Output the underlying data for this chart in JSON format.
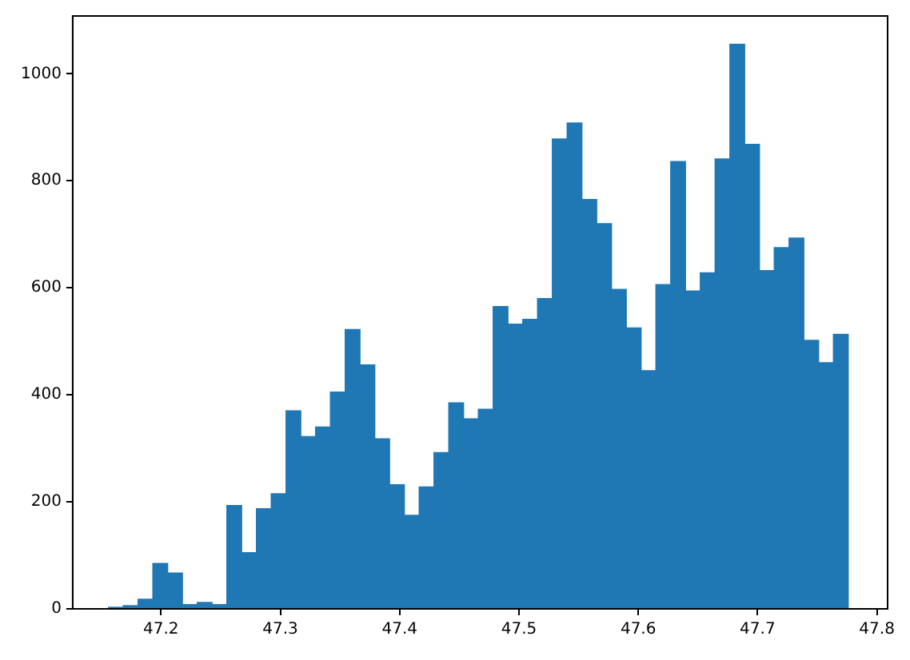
{
  "chart_data": {
    "type": "histogram",
    "color": "#1f77b4",
    "bins": [
      47.156,
      47.1684,
      47.1808,
      47.1932,
      47.2056,
      47.218,
      47.2304,
      47.2428,
      47.2552,
      47.2676,
      47.28,
      47.2924,
      47.3048,
      47.3172,
      47.3296,
      47.342,
      47.3544,
      47.3668,
      47.3792,
      47.3916,
      47.404,
      47.4164,
      47.4288,
      47.4412,
      47.4536,
      47.466,
      47.4784,
      47.4908,
      47.5032,
      47.5156,
      47.528,
      47.5404,
      47.5528,
      47.5652,
      47.5776,
      47.59,
      47.6024,
      47.6148,
      47.6272,
      47.6396,
      47.652,
      47.6644,
      47.6768,
      47.6892,
      47.7016,
      47.714,
      47.7264,
      47.7388,
      47.7512,
      47.7636,
      47.776
    ],
    "values": [
      3,
      6,
      18,
      85,
      67,
      8,
      12,
      8,
      193,
      105,
      187,
      215,
      370,
      322,
      340,
      405,
      522,
      456,
      318,
      232,
      175,
      228,
      292,
      385,
      355,
      373,
      565,
      532,
      541,
      580,
      878,
      908,
      765,
      720,
      597,
      525,
      445,
      606,
      836,
      594,
      628,
      841,
      1055,
      868,
      632,
      675,
      693,
      502,
      460,
      513
    ],
    "xlim": [
      47.126,
      47.809
    ],
    "xticks": [
      47.2,
      47.3,
      47.4,
      47.5,
      47.6,
      47.7,
      47.8
    ],
    "ylim": [
      0,
      1108
    ],
    "yticks": [
      0,
      200,
      400,
      600,
      800,
      1000
    ],
    "grid": false,
    "legend": false
  }
}
